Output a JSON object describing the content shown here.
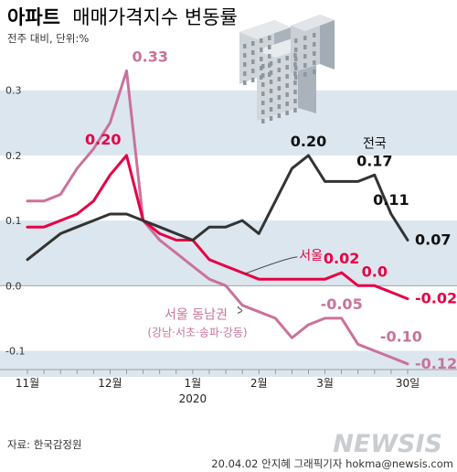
{
  "header": {
    "title_main": "아파트",
    "title_sub": "매매가격지수 변동률",
    "unit": "전주 대비, 단위:%"
  },
  "footer": {
    "source": "자료: 한국감정원",
    "credit": "20.04.02  안지혜 그래픽기자  hokma@newsis.com",
    "watermark": "NEWSIS"
  },
  "colors": {
    "national": "#333333",
    "seoul": "#e60044",
    "gangnam": "#c9729b",
    "band": "#dce6ee",
    "baseline": "#9aa7b2"
  },
  "chart_data": {
    "type": "line",
    "x_tick_labels": [
      "11월",
      "12월",
      "1월",
      "2월",
      "3월",
      "30일"
    ],
    "x_tick_index": [
      0,
      5,
      10,
      14,
      18,
      23
    ],
    "x_year_label": "2020",
    "x_year_index": 10,
    "ylim": [
      -0.14,
      0.36
    ],
    "y_ticks": [
      0.3,
      0.2,
      0.1,
      0.0,
      -0.1
    ],
    "y_tick_labels": [
      "0.3",
      "0.2",
      "0.1",
      "0.0",
      "-0.1"
    ],
    "series": [
      {
        "name": "전국",
        "color": "#333333",
        "values": [
          0.04,
          0.06,
          0.08,
          0.09,
          0.1,
          0.11,
          0.11,
          0.1,
          0.09,
          0.08,
          0.07,
          0.09,
          0.09,
          0.1,
          0.08,
          0.13,
          0.18,
          0.2,
          0.16,
          0.16,
          0.16,
          0.17,
          0.11,
          0.07
        ]
      },
      {
        "name": "서울",
        "color": "#e60044",
        "values": [
          0.09,
          0.09,
          0.1,
          0.11,
          0.13,
          0.17,
          0.2,
          0.1,
          0.08,
          0.07,
          0.07,
          0.04,
          0.03,
          0.02,
          0.01,
          0.01,
          0.01,
          0.01,
          0.01,
          0.02,
          0.0,
          0.0,
          -0.01,
          -0.02
        ]
      },
      {
        "name": "서울 동남권",
        "sublabel": "(강남·서초·송파·강동)",
        "color": "#c9729b",
        "values": [
          0.13,
          0.13,
          0.14,
          0.18,
          0.21,
          0.25,
          0.33,
          0.1,
          0.07,
          0.05,
          0.03,
          0.01,
          0.0,
          -0.03,
          -0.04,
          -0.05,
          -0.08,
          -0.06,
          -0.05,
          -0.05,
          -0.09,
          -0.1,
          -0.11,
          -0.12
        ]
      }
    ],
    "annotations": [
      {
        "text": "0.33",
        "series": 2,
        "index": 6,
        "pos": "above-right"
      },
      {
        "text": "0.20",
        "series": 1,
        "index": 6,
        "pos": "above-left"
      },
      {
        "text": "0.20",
        "series": 0,
        "index": 17,
        "pos": "above"
      },
      {
        "text": "전국",
        "series": 0,
        "index": 21,
        "pos": "name"
      },
      {
        "text": "0.17",
        "series": 0,
        "index": 21,
        "pos": "above"
      },
      {
        "text": "0.11",
        "series": 0,
        "index": 22,
        "pos": "above"
      },
      {
        "text": "0.07",
        "series": 0,
        "index": 23,
        "pos": "right"
      },
      {
        "text": "0.02",
        "series": 1,
        "index": 19,
        "pos": "above"
      },
      {
        "text": "0.0",
        "series": 1,
        "index": 21,
        "pos": "above"
      },
      {
        "text": "-0.02",
        "series": 1,
        "index": 23,
        "pos": "right"
      },
      {
        "text": "-0.05",
        "series": 2,
        "index": 19,
        "pos": "above"
      },
      {
        "text": "-0.10",
        "series": 2,
        "index": 21,
        "pos": "above-right"
      },
      {
        "text": "-0.12",
        "series": 2,
        "index": 23,
        "pos": "right"
      }
    ]
  }
}
